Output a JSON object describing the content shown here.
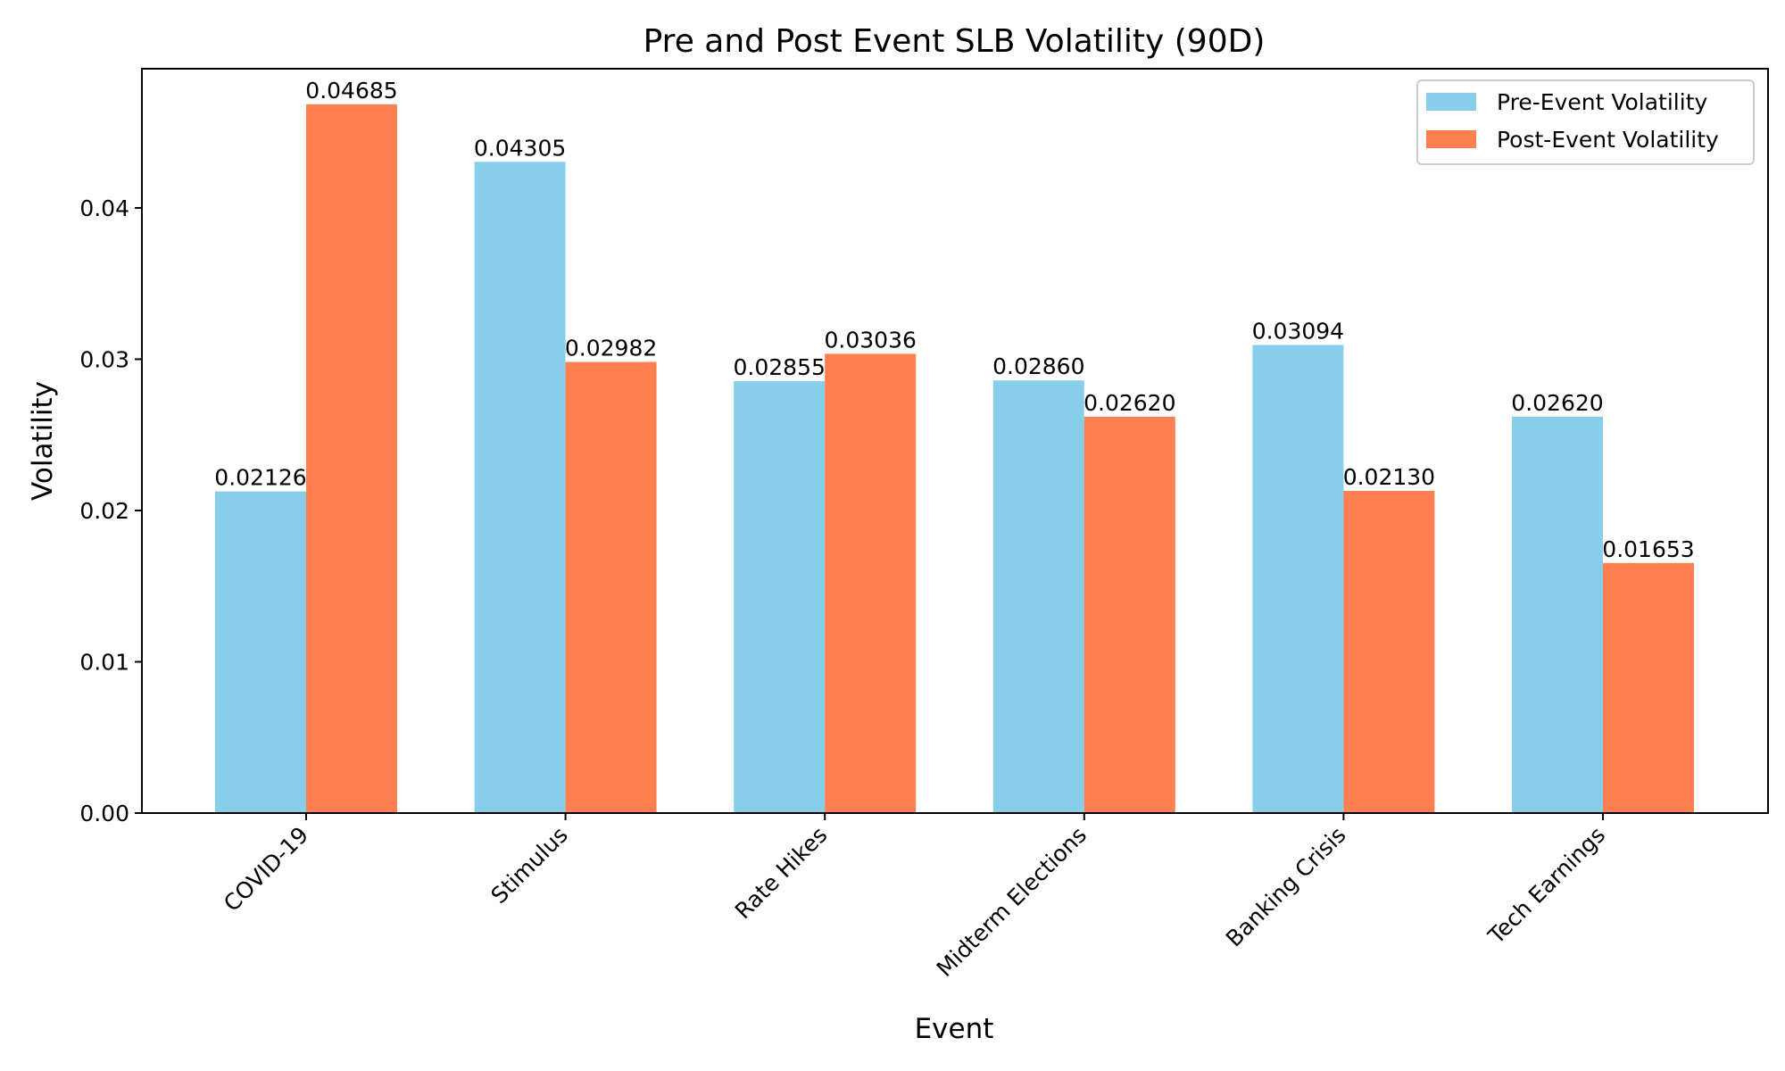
{
  "chart_data": {
    "type": "bar",
    "title": "Pre and Post Event SLB Volatility (90D)",
    "xlabel": "Event",
    "ylabel": "Volatility",
    "categories": [
      "COVID-19",
      "Stimulus",
      "Rate Hikes",
      "Midterm Elections",
      "Banking Crisis",
      "Tech Earnings"
    ],
    "series": [
      {
        "name": "Pre-Event Volatility",
        "color": "#87CEEB",
        "values": [
          0.02126,
          0.04305,
          0.02855,
          0.0286,
          0.03094,
          0.0262
        ],
        "value_labels": [
          "0.02126",
          "0.04305",
          "0.02855",
          "0.02860",
          "0.03094",
          "0.02620"
        ]
      },
      {
        "name": "Post-Event Volatility",
        "color": "#FF7F50",
        "values": [
          0.04685,
          0.02982,
          0.03036,
          0.0262,
          0.0213,
          0.01653
        ],
        "value_labels": [
          "0.04685",
          "0.02982",
          "0.03036",
          "0.02620",
          "0.02130",
          "0.01653"
        ]
      }
    ],
    "ylim": [
      0,
      0.0492
    ],
    "yticks": [
      0.0,
      0.01,
      0.02,
      0.03,
      0.04
    ],
    "ytick_labels": [
      "0.00",
      "0.01",
      "0.02",
      "0.03",
      "0.04"
    ],
    "xtick_rotation": 45,
    "legend_position": "top-right",
    "grid": false
  }
}
